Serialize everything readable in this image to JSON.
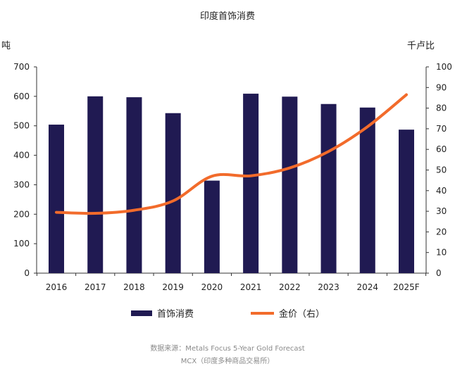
{
  "chart_data": {
    "type": "bar+line",
    "title": "印度首饰消费",
    "categories": [
      "2016",
      "2017",
      "2018",
      "2019",
      "2020",
      "2021",
      "2022",
      "2023",
      "2024",
      "2025F"
    ],
    "series": [
      {
        "name": "首饰消费",
        "type": "bar",
        "axis": "left",
        "color": "#201a52",
        "values": [
          504,
          600,
          597,
          543,
          314,
          609,
          599,
          574,
          562,
          487
        ]
      },
      {
        "name": "金价（右）",
        "type": "line",
        "axis": "right",
        "color": "#f26b2b",
        "values": [
          29.5,
          29,
          30.5,
          35,
          47,
          47.2,
          51,
          59,
          71,
          86.5
        ]
      }
    ],
    "ylabel_left": "吨",
    "ylabel_right": "千卢比",
    "ylim_left": [
      0,
      700
    ],
    "yticks_left": [
      0,
      100,
      200,
      300,
      400,
      500,
      600,
      700
    ],
    "ylim_right": [
      0,
      100
    ],
    "yticks_right": [
      0,
      10,
      20,
      30,
      40,
      50,
      60,
      70,
      80,
      90,
      100
    ],
    "grid": false,
    "legend_position": "bottom"
  },
  "source": {
    "line1": "数据来源：Metals Focus 5-Year Gold Forecast",
    "line2": "MCX（印度多种商品交易所）"
  }
}
